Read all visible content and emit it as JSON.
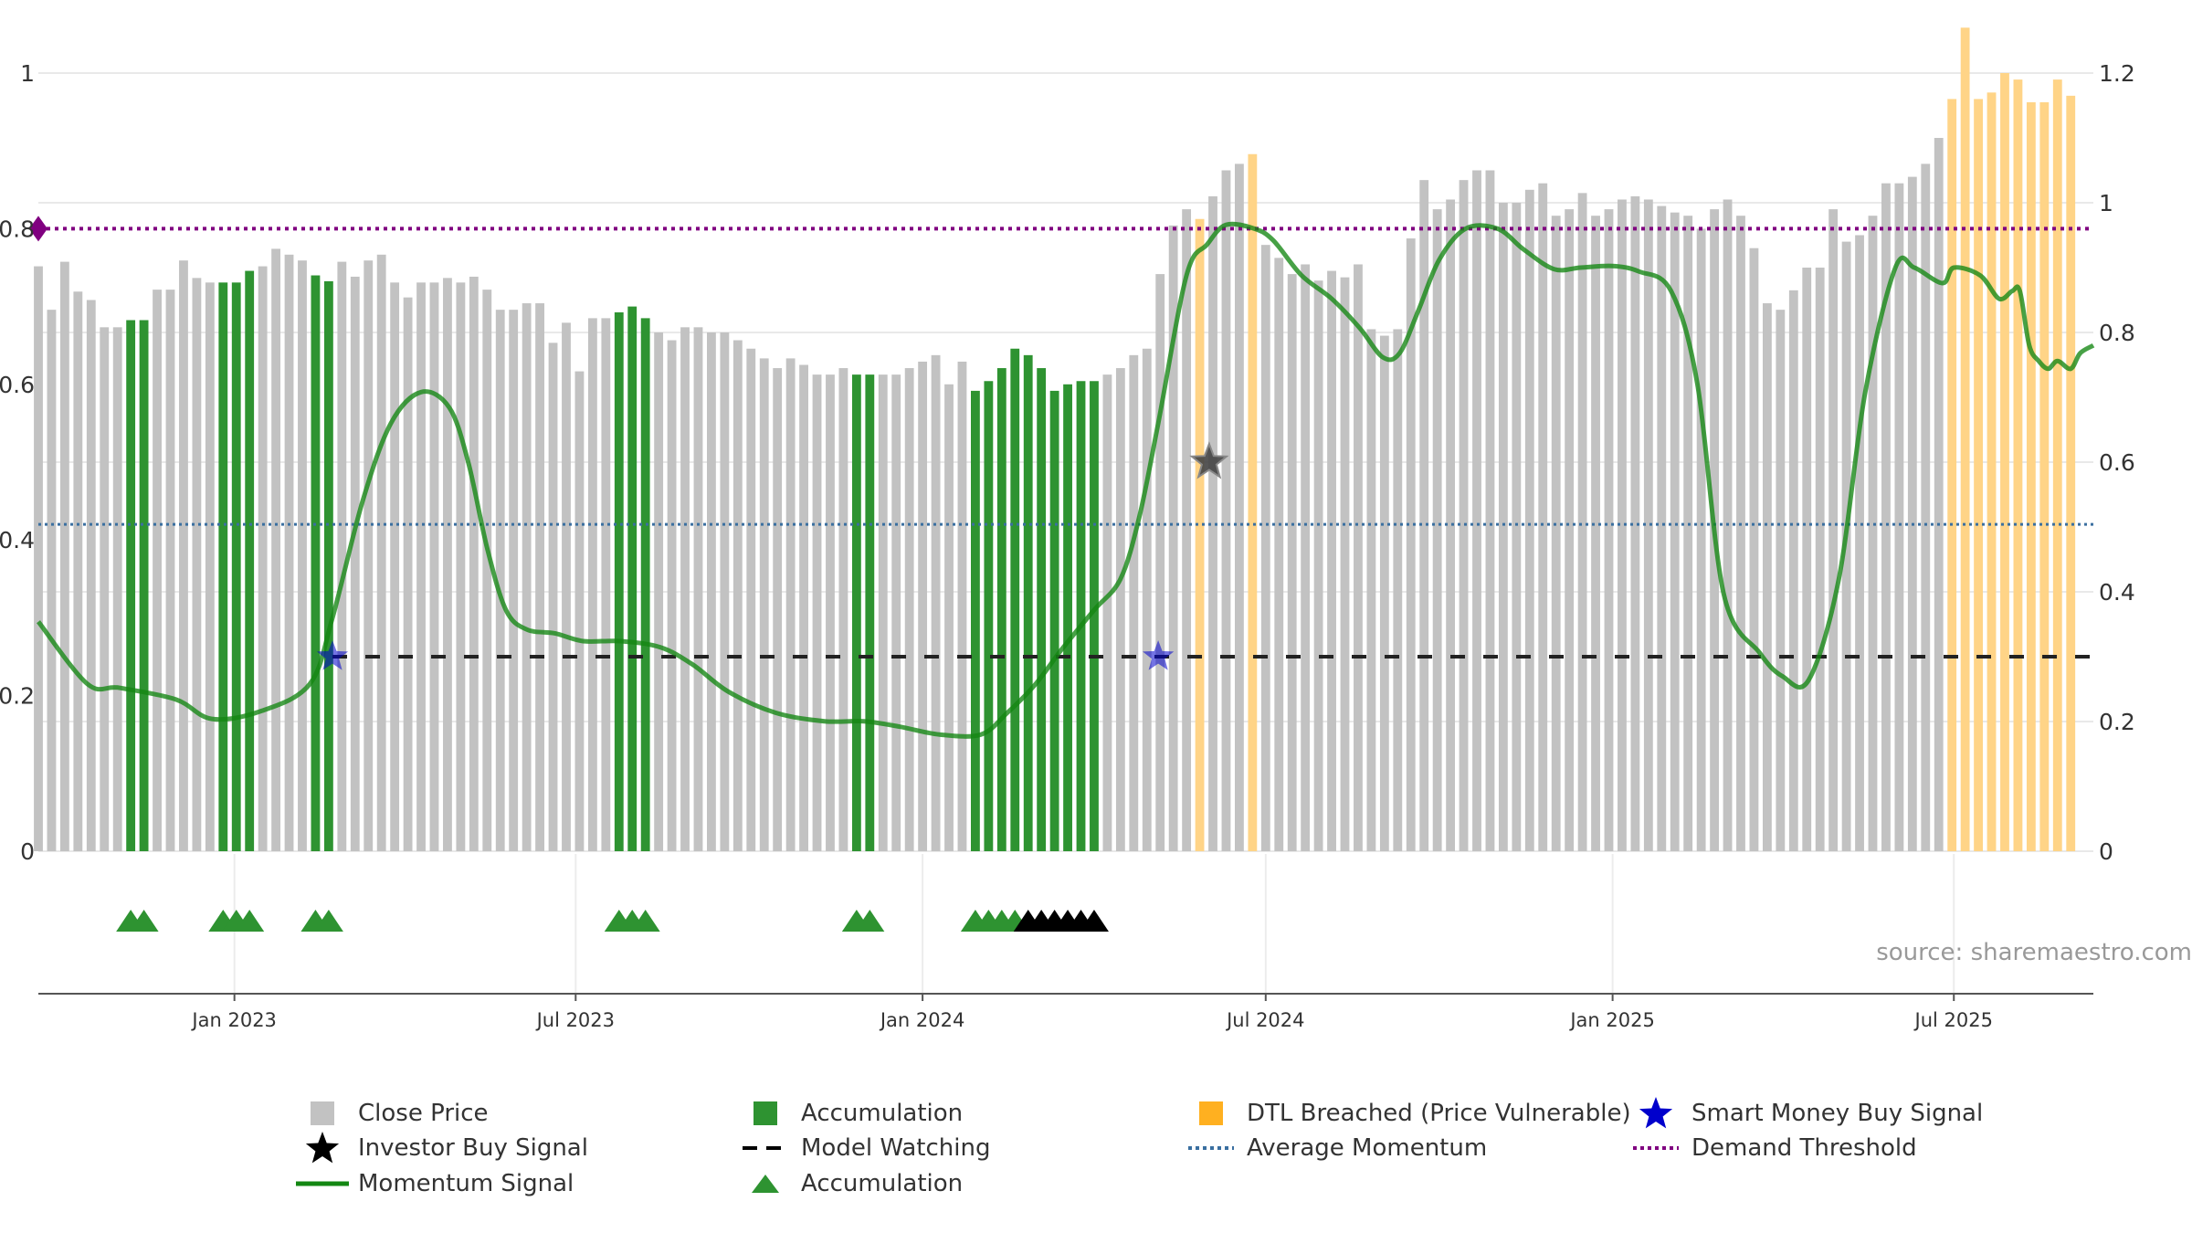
{
  "chart_data": {
    "type": "bar",
    "source_note": "source: sharemaestro.com",
    "x_ticks": [
      "Jan 2023",
      "Jul 2023",
      "Jan 2024",
      "Jul 2024",
      "Jan 2025",
      "Jul 2025"
    ],
    "x_tick_dates": [
      "2023-01-01",
      "2023-07-01",
      "2024-01-01",
      "2024-07-01",
      "2025-01-01",
      "2025-07-01"
    ],
    "x_range": [
      "2022-09-19",
      "2025-09-13"
    ],
    "left_axis": {
      "ticks": [
        "0",
        "0.2",
        "0.4",
        "0.6",
        "0.8",
        "1"
      ],
      "range": [
        0,
        1
      ]
    },
    "right_axis": {
      "ticks": [
        "0",
        "0.2",
        "0.4",
        "0.6",
        "0.8",
        "1",
        "1.2"
      ],
      "range": [
        0,
        1.2
      ]
    },
    "grid": true,
    "legend_position": "bottom",
    "colors": {
      "close_price": "#c2c2c2",
      "accumulation": "#2e9331",
      "dtl": "#ffd487",
      "momentum": "#138712",
      "average_momentum": "#3a6fa0",
      "demand_threshold": "#800080",
      "model_watching": "#222222",
      "smart_money": "#0000cc",
      "investor": "#000000"
    },
    "series": [
      {
        "name": "Close Price",
        "axis": "right",
        "start_date": "2022-09-19",
        "interval_days": 7,
        "values": [
          0.902,
          0.835,
          0.909,
          0.863,
          0.85,
          0.808,
          0.808,
          0.819,
          0.819,
          0.866,
          0.866,
          0.911,
          0.884,
          0.877,
          0.877,
          0.877,
          0.895,
          0.902,
          0.929,
          0.92,
          0.911,
          0.888,
          0.879,
          0.909,
          0.886,
          0.911,
          0.92,
          0.877,
          0.854,
          0.877,
          0.877,
          0.884,
          0.877,
          0.886,
          0.866,
          0.835,
          0.835,
          0.845,
          0.845,
          0.784,
          0.815,
          0.74,
          0.822,
          0.822,
          0.831,
          0.84,
          0.822,
          0.8,
          0.788,
          0.808,
          0.808,
          0.8,
          0.8,
          0.788,
          0.775,
          0.76,
          0.745,
          0.76,
          0.75,
          0.735,
          0.735,
          0.745,
          0.735,
          0.735,
          0.735,
          0.735,
          0.745,
          0.755,
          0.765,
          0.72,
          0.755,
          0.71,
          0.725,
          0.745,
          0.775,
          0.765,
          0.745,
          0.71,
          0.72,
          0.725,
          0.725,
          0.735,
          0.745,
          0.765,
          0.775,
          0.89,
          0.965,
          0.99,
          0.975,
          1.01,
          1.05,
          1.06,
          1.075,
          0.935,
          0.915,
          0.89,
          0.905,
          0.88,
          0.895,
          0.885,
          0.905,
          0.805,
          0.795,
          0.805,
          0.945,
          1.035,
          0.99,
          1.005,
          1.035,
          1.05,
          1.05,
          1.0,
          1.0,
          1.02,
          1.03,
          0.98,
          0.99,
          1.015,
          0.98,
          0.99,
          1.005,
          1.01,
          1.005,
          0.995,
          0.985,
          0.98,
          0.96,
          0.99,
          1.005,
          0.98,
          0.93,
          0.845,
          0.835,
          0.865,
          0.9,
          0.9,
          0.99,
          0.94,
          0.95,
          0.98,
          1.03,
          1.03,
          1.04,
          1.06,
          1.1,
          1.16,
          1.27,
          1.16,
          1.17,
          1.2,
          1.19,
          1.155,
          1.155,
          1.19,
          1.165
        ]
      },
      {
        "name": "Accumulation",
        "axis": "right",
        "bar_indices": [
          7,
          8,
          14,
          15,
          16,
          21,
          22,
          44,
          45,
          46,
          62,
          63,
          71,
          72,
          73,
          74,
          75,
          76,
          77,
          78,
          79,
          80
        ]
      },
      {
        "name": "DTL Breached (Price Vulnerable)",
        "axis": "right",
        "bar_indices": [
          88,
          92,
          145,
          146,
          147,
          148,
          149,
          150,
          151,
          152,
          153,
          154,
          155
        ]
      },
      {
        "name": "Momentum Signal",
        "axis": "left",
        "x": [
          "2022-09-19",
          "2022-10-15",
          "2022-11-01",
          "2022-12-01",
          "2022-12-20",
          "2023-01-15",
          "2023-02-10",
          "2023-02-22",
          "2023-03-10",
          "2023-03-25",
          "2023-04-10",
          "2023-04-25",
          "2023-05-05",
          "2023-05-15",
          "2023-05-25",
          "2023-06-05",
          "2023-06-20",
          "2023-07-05",
          "2023-07-25",
          "2023-08-15",
          "2023-09-01",
          "2023-09-20",
          "2023-10-15",
          "2023-11-10",
          "2023-12-01",
          "2023-12-20",
          "2024-01-10",
          "2024-02-01",
          "2024-02-15",
          "2024-03-01",
          "2024-03-15",
          "2024-04-01",
          "2024-04-15",
          "2024-04-25",
          "2024-05-05",
          "2024-05-20",
          "2024-05-31",
          "2024-06-10",
          "2024-06-25",
          "2024-07-05",
          "2024-07-20",
          "2024-08-05",
          "2024-08-20",
          "2024-09-01",
          "2024-09-10",
          "2024-09-20",
          "2024-10-01",
          "2024-10-15",
          "2024-11-01",
          "2024-11-15",
          "2024-12-01",
          "2024-12-15",
          "2025-01-01",
          "2025-01-15",
          "2025-02-01",
          "2025-02-15",
          "2025-03-01",
          "2025-03-20",
          "2025-04-01",
          "2025-04-15",
          "2025-05-01",
          "2025-05-15",
          "2025-05-31",
          "2025-06-10",
          "2025-06-25",
          "2025-07-01",
          "2025-07-15",
          "2025-07-25",
          "2025-08-01",
          "2025-08-05",
          "2025-08-10",
          "2025-08-15",
          "2025-08-20",
          "2025-08-25",
          "2025-09-01",
          "2025-09-06",
          "2025-09-13"
        ],
        "y": [
          0.295,
          0.215,
          0.21,
          0.195,
          0.17,
          0.18,
          0.215,
          0.3,
          0.45,
          0.55,
          0.59,
          0.57,
          0.5,
          0.39,
          0.31,
          0.285,
          0.28,
          0.27,
          0.27,
          0.262,
          0.24,
          0.205,
          0.178,
          0.167,
          0.167,
          0.16,
          0.15,
          0.15,
          0.178,
          0.215,
          0.26,
          0.31,
          0.35,
          0.43,
          0.55,
          0.74,
          0.78,
          0.805,
          0.8,
          0.785,
          0.74,
          0.71,
          0.672,
          0.635,
          0.64,
          0.695,
          0.76,
          0.8,
          0.8,
          0.773,
          0.748,
          0.75,
          0.752,
          0.745,
          0.72,
          0.6,
          0.33,
          0.255,
          0.225,
          0.22,
          0.35,
          0.59,
          0.75,
          0.75,
          0.73,
          0.75,
          0.74,
          0.71,
          0.72,
          0.72,
          0.65,
          0.63,
          0.62,
          0.63,
          0.62,
          0.64,
          0.65
        ]
      },
      {
        "name": "Average Momentum",
        "axis": "left",
        "value": 0.42
      },
      {
        "name": "Demand Threshold",
        "axis": "left",
        "value": 0.8
      },
      {
        "name": "Model Watching",
        "axis": "left",
        "value": 0.25,
        "from": "2023-02-22"
      },
      {
        "name": "Smart Money Buy Signal",
        "axis": "left",
        "points": [
          [
            "2023-02-22",
            0.25
          ],
          [
            "2024-05-05",
            0.25
          ]
        ]
      },
      {
        "name": "Investor Buy Signal",
        "axis": "left",
        "points": [
          [
            "2024-06-01",
            0.5
          ]
        ]
      },
      {
        "name": "Accumulation",
        "marker": "triangle",
        "bar_indices": [
          7,
          8,
          14,
          15,
          16,
          21,
          22,
          44,
          45,
          46,
          62,
          63,
          71,
          72,
          73,
          74,
          75,
          76,
          77,
          78,
          79,
          80
        ]
      },
      {
        "name": "Model Watching",
        "marker": "triangle",
        "bar_indices": [
          75,
          76,
          77,
          78,
          79,
          80
        ]
      }
    ],
    "legend": [
      {
        "label": "Close Price",
        "symbol": "square-grey"
      },
      {
        "label": "Accumulation",
        "symbol": "square-green"
      },
      {
        "label": "DTL Breached (Price Vulnerable)",
        "symbol": "square-orange"
      },
      {
        "label": "Smart Money Buy Signal",
        "symbol": "star-blue"
      },
      {
        "label": "Investor Buy Signal",
        "symbol": "star-black"
      },
      {
        "label": "Model Watching",
        "symbol": "dash-black"
      },
      {
        "label": "Average Momentum",
        "symbol": "dot-blue"
      },
      {
        "label": "Demand Threshold",
        "symbol": "dot-purple"
      },
      {
        "label": "Momentum Signal",
        "symbol": "line-green"
      },
      {
        "label": "Accumulation",
        "symbol": "triangle-green"
      }
    ]
  }
}
